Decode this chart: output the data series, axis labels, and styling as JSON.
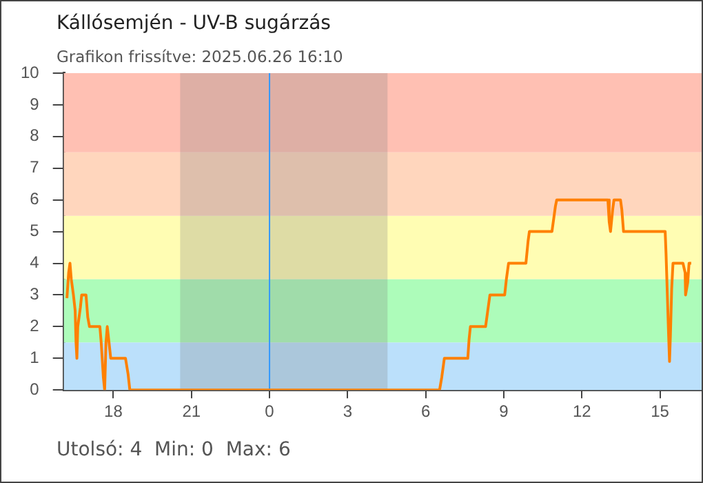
{
  "chart_data": {
    "type": "line",
    "title": "Kállósemjén - UV-B sugárzás",
    "subtitle": "Grafikon frissítve: 2025.06.26 16:10",
    "annotations": [
      "Utolsó: 4  Min: 0  Max: 6"
    ],
    "x": [
      "2025-06-25T16:13",
      "2025-06-25T16:17",
      "2025-06-25T16:20",
      "2025-06-25T16:23",
      "2025-06-25T16:28",
      "2025-06-25T16:32",
      "2025-06-25T16:34",
      "2025-06-25T16:36",
      "2025-06-25T16:38",
      "2025-06-25T16:44",
      "2025-06-25T16:47",
      "2025-06-25T16:57",
      "2025-06-25T17:01",
      "2025-06-25T17:05",
      "2025-06-25T17:29",
      "2025-06-25T17:32",
      "2025-06-25T17:37",
      "2025-06-25T17:40",
      "2025-06-25T17:43",
      "2025-06-25T17:46",
      "2025-06-25T17:50",
      "2025-06-25T17:54",
      "2025-06-25T18:28",
      "2025-06-25T18:34",
      "2025-06-25T18:38",
      "2025-06-26T06:32",
      "2025-06-26T06:37",
      "2025-06-26T06:43",
      "2025-06-26T07:37",
      "2025-06-26T07:40",
      "2025-06-26T07:43",
      "2025-06-26T08:18",
      "2025-06-26T08:22",
      "2025-06-26T08:28",
      "2025-06-26T09:02",
      "2025-06-26T09:06",
      "2025-06-26T09:11",
      "2025-06-26T09:51",
      "2025-06-26T09:56",
      "2025-06-26T09:59",
      "2025-06-26T10:51",
      "2025-06-26T10:55",
      "2025-06-26T10:59",
      "2025-06-26T11:02",
      "2025-06-26T13:00",
      "2025-06-26T13:03",
      "2025-06-26T13:06",
      "2025-06-26T13:11",
      "2025-06-26T13:14",
      "2025-06-26T13:29",
      "2025-06-26T13:32",
      "2025-06-26T13:36",
      "2025-06-26T15:12",
      "2025-06-26T15:14",
      "2025-06-26T15:17",
      "2025-06-26T15:20",
      "2025-06-26T15:22",
      "2025-06-26T15:24",
      "2025-06-26T15:27",
      "2025-06-26T15:30",
      "2025-06-26T15:53",
      "2025-06-26T15:58",
      "2025-06-26T15:59",
      "2025-06-26T16:04",
      "2025-06-26T16:07",
      "2025-06-26T16:12"
    ],
    "series": [
      {
        "color": "#ff8000",
        "values": [
          2.9,
          3.7,
          4,
          3.5,
          3,
          2.5,
          1.5,
          1,
          2,
          2.6,
          3,
          3,
          2.3,
          2,
          2,
          1.5,
          0.4,
          0,
          1.5,
          2,
          1.5,
          1,
          1,
          0.5,
          0,
          0,
          0.4,
          1,
          1,
          1.6,
          2,
          2,
          2.4,
          3,
          3,
          3.5,
          4,
          4,
          4.7,
          5,
          5,
          5.4,
          5.8,
          6,
          6,
          5.3,
          5,
          5.7,
          6,
          6,
          5.7,
          5,
          5,
          4.3,
          3,
          1.7,
          0.9,
          1.7,
          3.2,
          4,
          4,
          3.7,
          3,
          3.4,
          4,
          4
        ]
      }
    ],
    "xlim": [
      "2025-06-25T16:06",
      "2025-06-26T16:36"
    ],
    "xticks": [
      {
        "value": "2025-06-25T18:00",
        "label": "18"
      },
      {
        "value": "2025-06-25T21:00",
        "label": "21"
      },
      {
        "value": "2025-06-26T00:00",
        "label": "0"
      },
      {
        "value": "2025-06-26T03:00",
        "label": "3"
      },
      {
        "value": "2025-06-26T06:00",
        "label": "6"
      },
      {
        "value": "2025-06-26T09:00",
        "label": "9"
      },
      {
        "value": "2025-06-26T12:00",
        "label": "12"
      },
      {
        "value": "2025-06-26T15:00",
        "label": "15"
      }
    ],
    "ylim": [
      0,
      10
    ],
    "yticks": [
      0,
      1,
      2,
      3,
      4,
      5,
      6,
      7,
      8,
      9,
      10
    ],
    "bands": [
      {
        "axis": "y",
        "from": 0,
        "to": 1.5,
        "color": "#bbe0fb"
      },
      {
        "axis": "y",
        "from": 1.5,
        "to": 3.5,
        "color": "#adfcba"
      },
      {
        "axis": "y",
        "from": 3.5,
        "to": 5.5,
        "color": "#fffdb3"
      },
      {
        "axis": "y",
        "from": 5.5,
        "to": 7.5,
        "color": "#ffd6bd"
      },
      {
        "axis": "y",
        "from": 7.5,
        "to": 10,
        "color": "#ffc0b3"
      },
      {
        "axis": "x",
        "from": "2025-06-25T20:34",
        "to": "2025-06-26T04:32",
        "color": "#7a7a7a"
      }
    ],
    "ref_lines": [
      {
        "axis": "x",
        "value": "2025-06-26T00:00",
        "color": "#3399ff"
      }
    ],
    "grid": false,
    "legend": false,
    "marker": "none",
    "line_style": "solid"
  }
}
